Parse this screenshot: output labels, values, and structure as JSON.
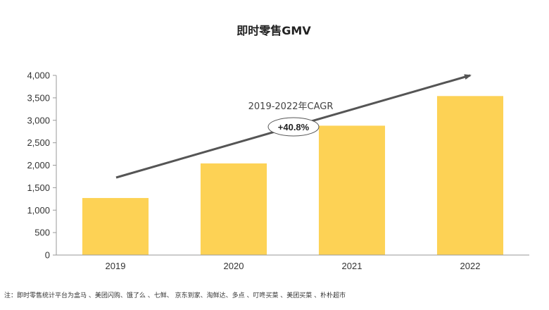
{
  "chart_data": {
    "type": "bar",
    "title": "即时零售GMV",
    "categories": [
      "2019",
      "2020",
      "2021",
      "2022"
    ],
    "values": [
      1270,
      2040,
      2880,
      3540
    ],
    "ylim": [
      0,
      4000
    ],
    "yticks": [
      "0",
      "500",
      "1,000",
      "1,500",
      "2,000",
      "2,500",
      "3,000",
      "3,500",
      "4,000"
    ],
    "ytick_values": [
      0,
      500,
      1000,
      1500,
      2000,
      2500,
      3000,
      3500,
      4000
    ],
    "xlabel": "",
    "ylabel": "",
    "grid": false,
    "bar_color": "#FDD255",
    "annotation": {
      "label": "2019-2022年CAGR",
      "value": "+40.8%"
    }
  },
  "footnote": "注：即时零售统计平台为盒马 、美团闪购、饿了么 、七鲜、 京东到家、淘鲜达、多点 、叮咚买菜 、美团买菜 、朴朴超市"
}
